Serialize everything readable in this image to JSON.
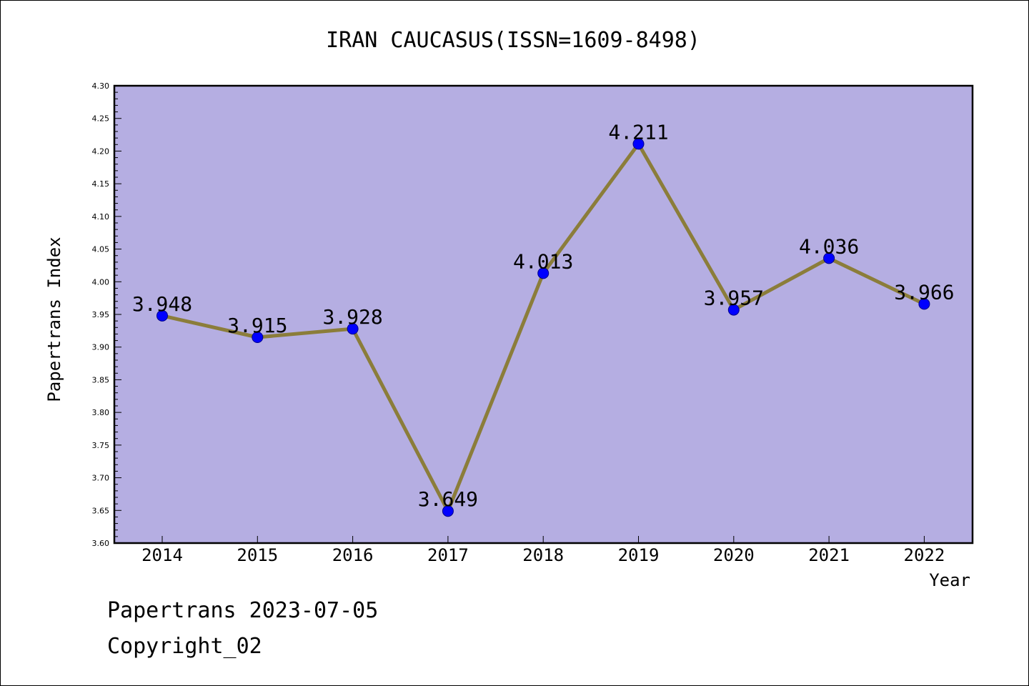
{
  "chart_data": {
    "type": "line",
    "title": "IRAN CAUCASUS(ISSN=1609-8498)",
    "xlabel": "Year",
    "ylabel": "Papertrans Index",
    "categories": [
      "2014",
      "2015",
      "2016",
      "2017",
      "2018",
      "2019",
      "2020",
      "2021",
      "2022"
    ],
    "series": [
      {
        "values": [
          3.948,
          3.915,
          3.928,
          3.649,
          4.013,
          4.211,
          3.957,
          4.036,
          3.966
        ],
        "labels": [
          "3.948",
          "3.915",
          "3.928",
          "3.649",
          "4.013",
          "4.211",
          "3.957",
          "4.036",
          "3.966"
        ]
      }
    ],
    "yticks": [
      "3.60",
      "3.65",
      "3.70",
      "3.75",
      "3.80",
      "3.85",
      "3.90",
      "3.95",
      "4.00",
      "4.05",
      "4.10",
      "4.15",
      "4.20",
      "4.25",
      "4.30"
    ],
    "ylim": [
      3.6,
      4.3
    ],
    "grid": false,
    "colors": {
      "plot_background": "#b5aee2",
      "line": "#8b7d3a",
      "marker": "#0000ff"
    }
  },
  "footer": {
    "line1": "Papertrans 2023-07-05",
    "line2": "Copyright_02"
  }
}
